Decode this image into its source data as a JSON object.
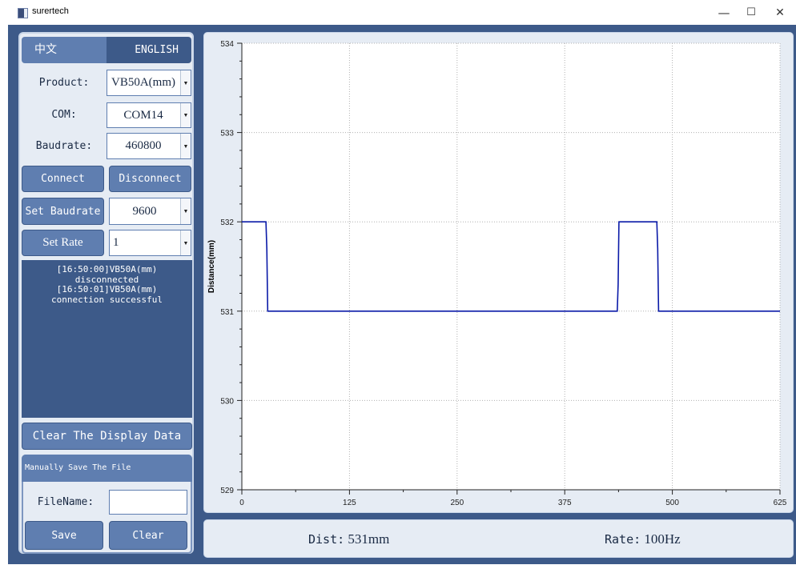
{
  "window": {
    "title": "surertech",
    "minimize_glyph": "—",
    "maximize_glyph": "☐",
    "close_glyph": "✕",
    "icon": "app-icon"
  },
  "language": {
    "zh": "中文",
    "en": "ENGLISH",
    "selected": "en"
  },
  "form": {
    "product_label": "Product:",
    "product_value": "VB50A(mm)",
    "com_label": "COM:",
    "com_value": "COM14",
    "baudrate_label": "Baudrate:",
    "baudrate_value": "460800"
  },
  "buttons": {
    "connect": "Connect",
    "disconnect": "Disconnect",
    "set_baudrate": "Set Baudrate",
    "set_baudrate_value": "9600",
    "set_rate": "Set Rate",
    "set_rate_value": "1",
    "clear_display": "Clear The Display Data"
  },
  "log": {
    "lines": [
      "[16:50:00]VB50A(mm)",
      "disconnected",
      "[16:50:01]VB50A(mm)",
      "connection successful"
    ]
  },
  "save": {
    "header": "Manually Save The File",
    "filename_label": "FileName:",
    "filename_value": "",
    "save": "Save",
    "clear": "Clear"
  },
  "colors": {
    "frame": "#3d5a89",
    "accent": "#5f7eb0",
    "panel": "#e6ecf4",
    "line": "#0a1aa8"
  },
  "chart_data": {
    "type": "line",
    "title": "",
    "xlabel": "",
    "ylabel": "Distance(mm)",
    "xlim": [
      0,
      625
    ],
    "ylim": [
      529,
      534
    ],
    "x_ticks": [
      0,
      125,
      250,
      375,
      500,
      625
    ],
    "y_ticks": [
      529,
      530,
      531,
      532,
      533,
      534
    ],
    "grid": true,
    "series": [
      {
        "values": [
          [
            0,
            532
          ],
          [
            28,
            532
          ],
          [
            29,
            531.7
          ],
          [
            30,
            531
          ],
          [
            436,
            531
          ],
          [
            437,
            531.3
          ],
          [
            438,
            532
          ],
          [
            482,
            532
          ],
          [
            483,
            531.7
          ],
          [
            484,
            531
          ],
          [
            625,
            531
          ]
        ]
      }
    ]
  },
  "status": {
    "dist_label": "Dist:",
    "dist_value": "531mm",
    "rate_label": "Rate:",
    "rate_value": "100Hz"
  }
}
